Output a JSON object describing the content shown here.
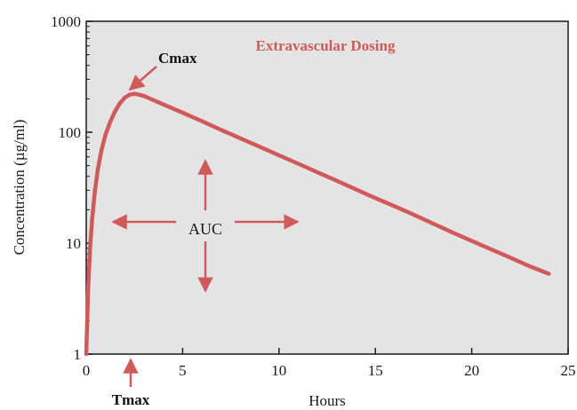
{
  "chart_data": {
    "type": "line",
    "title": "Extravascular Dosing",
    "xlabel": "Hours",
    "ylabel": "Concentration (µg/ml)",
    "xlim": [
      0,
      25
    ],
    "ylim": [
      1,
      1000
    ],
    "yscale": "log",
    "x_ticks": [
      "0",
      "5",
      "10",
      "15",
      "20",
      "25"
    ],
    "y_ticks": [
      "1",
      "10",
      "100",
      "1000"
    ],
    "series": [
      {
        "x": [
          0,
          0.05,
          0.1,
          0.2,
          0.3,
          0.45,
          0.6,
          0.8,
          1.0,
          1.25,
          1.5,
          1.75,
          2.0,
          2.25,
          2.5,
          2.75,
          3.0,
          4,
          5,
          6,
          7,
          8,
          9,
          10,
          11,
          12,
          13,
          14,
          15,
          16,
          17,
          18,
          19,
          20,
          21,
          22,
          23,
          24
        ],
        "values": [
          1.0,
          2.0,
          4.0,
          9.0,
          16.0,
          30.0,
          46.0,
          70.0,
          95.0,
          125.0,
          155.0,
          183.0,
          205.0,
          218.0,
          222.0,
          218.0,
          212.0,
          178.0,
          150.0,
          126.0,
          105.0,
          88.0,
          74.0,
          62.0,
          52.0,
          43.5,
          36.5,
          30.5,
          25.5,
          21.5,
          18.0,
          15.0,
          12.5,
          10.5,
          8.8,
          7.4,
          6.2,
          5.3
        ]
      }
    ],
    "annotations": {
      "cmax": "Cmax",
      "tmax": "Tmax",
      "auc": "AUC"
    },
    "grid": false,
    "colors": {
      "plot_background": "#e4e4e4",
      "curve": "#d05a5a",
      "annotation": "#d05a5a",
      "axis": "#1a1a1a"
    }
  }
}
